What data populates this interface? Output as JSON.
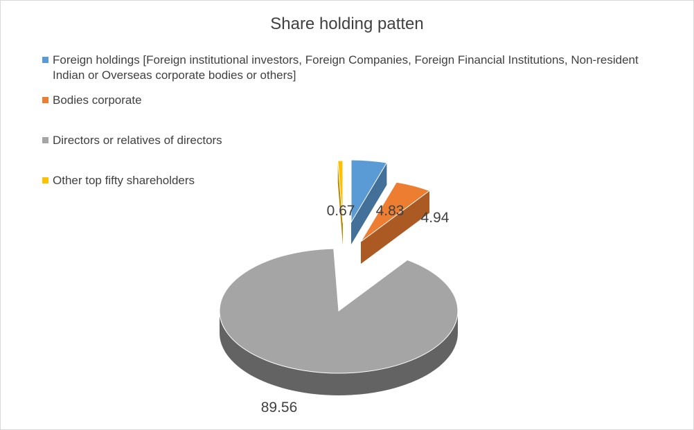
{
  "chart_data": {
    "type": "pie",
    "title": "Share holding patten",
    "legend_position": "top-left",
    "categories": [
      "Foreign holdings [Foreign institutional investors, Foreign Companies, Foreign Financial Institutions, Non-resident Indian or Overseas corporate bodies or others]",
      "Bodies corporate",
      "Directors or relatives of directors",
      "Other top fifty shareholders"
    ],
    "values": [
      4.83,
      4.94,
      89.56,
      0.67
    ],
    "data_labels": [
      "4.83",
      "4.94",
      "89.56",
      "0.67"
    ],
    "colors": [
      "#5b9bd5",
      "#ed7d31",
      "#a5a5a5",
      "#ffc000"
    ],
    "style": "3d-exploded"
  }
}
